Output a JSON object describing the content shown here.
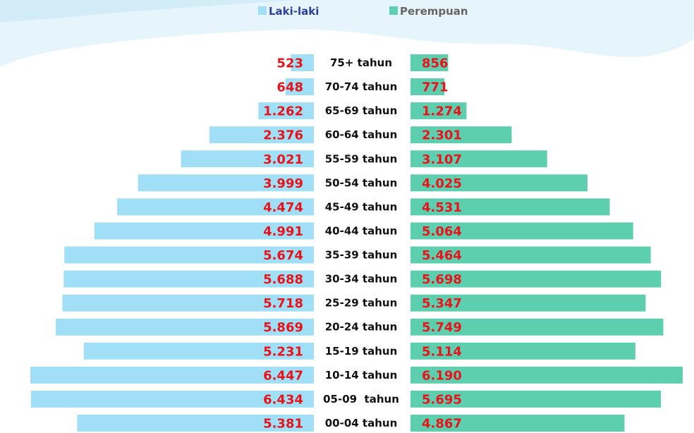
{
  "chart_data": {
    "type": "pyramid",
    "categories": [
      "75+ tahun",
      "70-74 tahun",
      "65-69 tahun",
      "60-64 tahun",
      "55-59 tahun",
      "50-54 tahun",
      "45-49 tahun",
      "40-44 tahun",
      "35-39 tahun",
      "30-34 tahun",
      "25-29 tahun",
      "20-24 tahun",
      "15-19 tahun",
      "10-14 tahun",
      "05-09  tahun",
      "00-04 tahun"
    ],
    "series": [
      {
        "name": "Laki-laki",
        "color": "#a0dff6",
        "side": "left",
        "values": [
          523,
          648,
          1262,
          2376,
          3021,
          3999,
          4474,
          4991,
          5674,
          5688,
          5718,
          5869,
          5231,
          6447,
          6434,
          5381
        ],
        "value_labels": [
          "523",
          "648",
          "1.262",
          "2.376",
          "3.021",
          "3.999",
          "4.474",
          "4.991",
          "5.674",
          "5.688",
          "5.718",
          "5.869",
          "5.231",
          "6.447",
          "6.434",
          "5.381"
        ]
      },
      {
        "name": "Perempuan",
        "color": "#5ecfae",
        "side": "right",
        "values": [
          856,
          771,
          1274,
          2301,
          3107,
          4025,
          4531,
          5064,
          5464,
          5698,
          5347,
          5749,
          5114,
          6190,
          5695,
          4867
        ],
        "value_labels": [
          "856",
          "771",
          "1.274",
          "2.301",
          "3.107",
          "4.025",
          "4.531",
          "5.064",
          "5.464",
          "5.698",
          "5.347",
          "5.749",
          "5.114",
          "6.190",
          "5.695",
          "4.867"
        ]
      }
    ]
  }
}
